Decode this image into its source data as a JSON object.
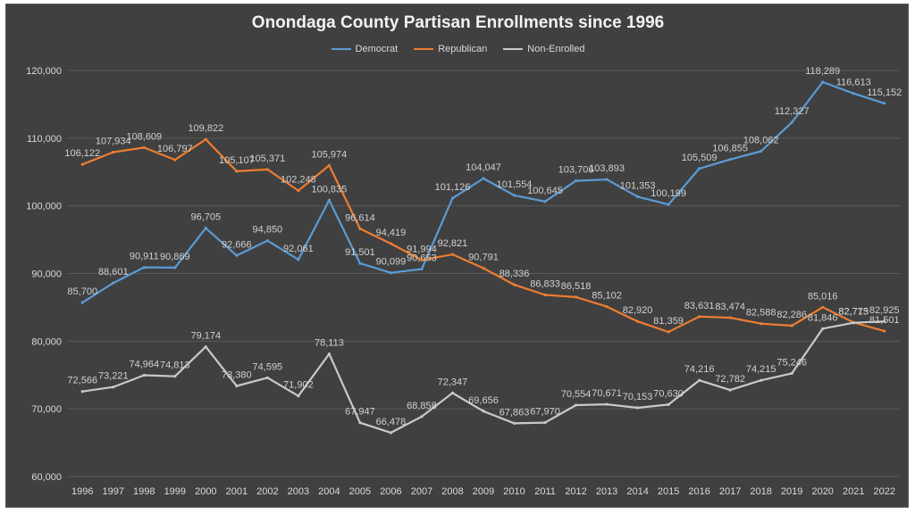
{
  "chart_data": {
    "type": "line",
    "title": "Onondaga County Partisan Enrollments since 1996",
    "categories": [
      "1996",
      "1997",
      "1998",
      "1999",
      "2000",
      "2001",
      "2002",
      "2003",
      "2004",
      "2005",
      "2006",
      "2007",
      "2008",
      "2009",
      "2010",
      "2011",
      "2012",
      "2013",
      "2014",
      "2015",
      "2016",
      "2017",
      "2018",
      "2019",
      "2020",
      "2021",
      "2022"
    ],
    "series": [
      {
        "name": "Democrat",
        "color": "#5b9bd5",
        "values": [
          85700,
          88601,
          90911,
          90869,
          96705,
          92666,
          94850,
          92061,
          100835,
          91501,
          90099,
          90653,
          101126,
          104047,
          101554,
          100645,
          103706,
          103893,
          101353,
          100199,
          105509,
          106855,
          108062,
          112327,
          118289,
          116613,
          115152
        ],
        "labels": [
          "85,700",
          "88,601",
          "90,911",
          "90,869",
          "96,705",
          "92,666",
          "94,850",
          "92,061",
          "100,835",
          "91,501",
          "90,099",
          "90,653",
          "101,126",
          "104,047",
          "101,554",
          "100,645",
          "103,706",
          "103,893",
          "101,353",
          "100,199",
          "105,509",
          "106,855",
          "108,062",
          "112,327",
          "118,289",
          "116,613",
          "115,152"
        ]
      },
      {
        "name": "Republican",
        "color": "#ed7d31",
        "values": [
          106122,
          107934,
          108609,
          106797,
          109822,
          105107,
          105371,
          102248,
          105974,
          96614,
          94419,
          91994,
          92821,
          90791,
          88336,
          86833,
          86518,
          85102,
          82920,
          81359,
          83631,
          83474,
          82588,
          82286,
          85016,
          82773,
          81501
        ],
        "labels": [
          "106,122",
          "107,934",
          "108,609",
          "106,797",
          "109,822",
          "105,107",
          "105,371",
          "102,248",
          "105,974",
          "96,614",
          "94,419",
          "91,994",
          "92,821",
          "90,791",
          "88,336",
          "86,833",
          "86,518",
          "85,102",
          "82,920",
          "81,359",
          "83,631",
          "83,474",
          "82,588",
          "82,286",
          "85,016",
          "82,773",
          "81,501"
        ]
      },
      {
        "name": "Non-Enrolled",
        "color": "#c9c9c9",
        "values": [
          72566,
          73221,
          74964,
          74813,
          79174,
          73380,
          74595,
          71902,
          78113,
          67947,
          66478,
          68858,
          72347,
          69656,
          67863,
          67970,
          70554,
          70671,
          70153,
          70630,
          74216,
          72782,
          74215,
          75246,
          81846,
          82715,
          82925
        ],
        "labels": [
          "72,566",
          "73,221",
          "74,964",
          "74,813",
          "79,174",
          "73,380",
          "74,595",
          "71,902",
          "78,113",
          "67,947",
          "66,478",
          "68,858",
          "72,347",
          "69,656",
          "67,863",
          "67,970",
          "70,554",
          "70,671",
          "70,153",
          "70,630",
          "74,216",
          "72,782",
          "74,215",
          "75,246",
          "81,846",
          "82,715",
          "82,925"
        ]
      }
    ],
    "ylim": [
      60000,
      120000
    ],
    "yticks": [
      60000,
      70000,
      80000,
      90000,
      100000,
      110000,
      120000
    ],
    "ytick_labels": [
      "60,000",
      "70,000",
      "80,000",
      "90,000",
      "100,000",
      "110,000",
      "120,000"
    ],
    "xlabel": "",
    "ylabel": "",
    "grid": true,
    "legend_position": "top"
  }
}
